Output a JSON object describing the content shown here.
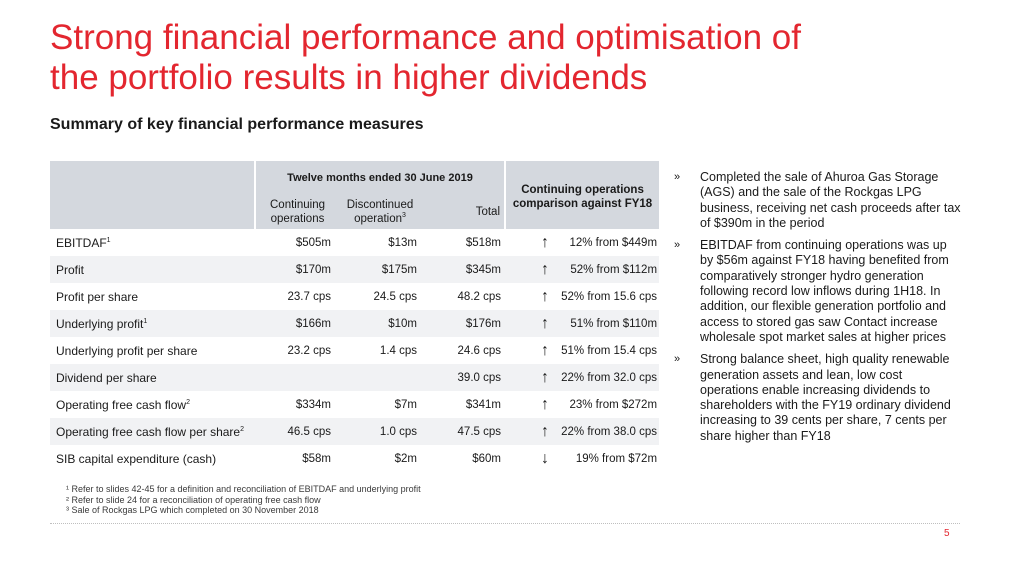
{
  "slide": {
    "title_line1": "Strong financial performance and optimisation of",
    "title_line2": "the portfolio results in higher dividends",
    "subtitle": "Summary of key financial performance measures",
    "page_number": "5"
  },
  "table": {
    "header_group": "Twelve months ended 30 June 2019",
    "col_continuing_l1": "Continuing",
    "col_continuing_l2": "operations",
    "col_discontinued_l1": "Discontinued",
    "col_discontinued_l2": "operation",
    "col_discontinued_sup": "3",
    "col_total": "Total",
    "col_comparison_l1": "Continuing operations",
    "col_comparison_l2": "comparison against FY18",
    "rows": [
      {
        "label": "EBITDAF",
        "sup": "1",
        "continuing": "$505m",
        "discontinued": "$13m",
        "total": "$518m",
        "arrow": "↑",
        "comparison": "12% from $449m"
      },
      {
        "label": "Profit",
        "sup": "",
        "continuing": "$170m",
        "discontinued": "$175m",
        "total": "$345m",
        "arrow": "↑",
        "comparison": "52% from $112m"
      },
      {
        "label": "Profit per share",
        "sup": "",
        "continuing": "23.7 cps",
        "discontinued": "24.5 cps",
        "total": "48.2 cps",
        "arrow": "↑",
        "comparison": "52% from 15.6 cps"
      },
      {
        "label": "Underlying profit",
        "sup": "1",
        "continuing": "$166m",
        "discontinued": "$10m",
        "total": "$176m",
        "arrow": "↑",
        "comparison": "51% from $110m"
      },
      {
        "label": "Underlying profit per share",
        "sup": "",
        "continuing": "23.2 cps",
        "discontinued": "1.4 cps",
        "total": "24.6 cps",
        "arrow": "↑",
        "comparison": "51% from 15.4 cps"
      },
      {
        "label": "Dividend per share",
        "sup": "",
        "continuing": "",
        "discontinued": "",
        "total": "39.0 cps",
        "arrow": "↑",
        "comparison": "22% from 32.0 cps"
      },
      {
        "label": "Operating free cash flow",
        "sup": "2",
        "continuing": "$334m",
        "discontinued": "$7m",
        "total": "$341m",
        "arrow": "↑",
        "comparison": "23% from $272m"
      },
      {
        "label": "Operating free cash flow per share",
        "sup": "2",
        "continuing": "46.5 cps",
        "discontinued": "1.0 cps",
        "total": "47.5 cps",
        "arrow": "↑",
        "comparison": "22% from 38.0 cps"
      },
      {
        "label": "SIB capital expenditure (cash)",
        "sup": "",
        "continuing": "$58m",
        "discontinued": "$2m",
        "total": "$60m",
        "arrow": "↓",
        "comparison": "19% from $72m"
      }
    ]
  },
  "footnotes": [
    "¹ Refer to slides 42-45 for a definition and reconciliation of EBITDAF and underlying profit",
    "² Refer to slide 24 for a reconciliation of operating free cash flow",
    "³ Sale of Rockgas LPG which completed on 30 November 2018"
  ],
  "bullets": {
    "marker": "»",
    "items": [
      "Completed the sale of Ahuroa Gas Storage (AGS) and the sale of the Rockgas LPG business, receiving net cash proceeds after tax of $390m in the period",
      "EBITDAF from continuing operations was up by $56m against FY18 having benefited from comparatively stronger hydro generation following record low inflows during 1H18. In addition, our flexible generation portfolio and access to stored gas saw Contact increase wholesale spot market sales at higher prices",
      "Strong balance sheet, high quality renewable generation assets and lean, low cost operations enable increasing dividends to shareholders with the FY19 ordinary dividend increasing to 39 cents per share, 7 cents per share higher than FY18"
    ]
  },
  "colors": {
    "title": "#e3262f",
    "header_fill": "#d4d8de",
    "row_shade": "#f1f2f4",
    "page_number": "#e3262f"
  }
}
